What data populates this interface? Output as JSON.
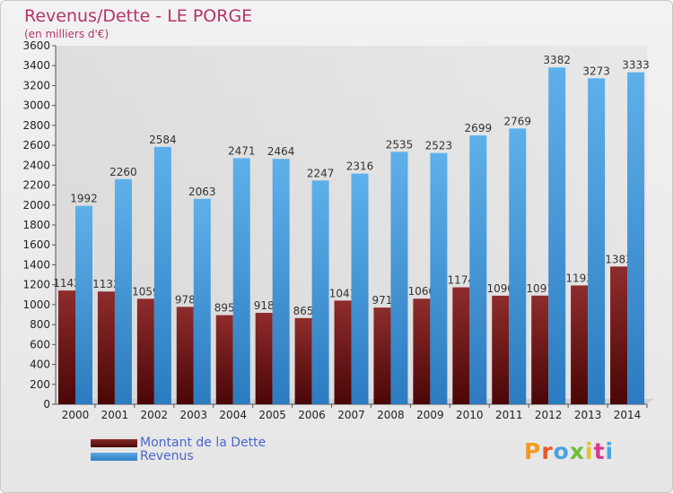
{
  "title": "Revenus/Dette - LE PORGE",
  "subtitle": "(en milliers d'€)",
  "logo": "Proxiti",
  "colors": {
    "dette": "#7a1a1a",
    "revenus": "#3f97d8",
    "title": "#b5346a",
    "legend_text": "#4a66cc"
  },
  "chart_data": {
    "type": "bar",
    "title": "Revenus/Dette - LE PORGE",
    "subtitle": "(en milliers d'€)",
    "categories": [
      "2000",
      "2001",
      "2002",
      "2003",
      "2004",
      "2005",
      "2006",
      "2007",
      "2008",
      "2009",
      "2010",
      "2011",
      "2012",
      "2013",
      "2014"
    ],
    "series": [
      {
        "name": "Montant de la Dette",
        "values": [
          1142,
          1132,
          1059,
          978,
          895,
          918,
          865,
          1041,
          971,
          1060,
          1174,
          1090,
          1091,
          1193,
          1383
        ]
      },
      {
        "name": "Revenus",
        "values": [
          1992,
          2260,
          2584,
          2063,
          2471,
          2464,
          2247,
          2316,
          2535,
          2523,
          2699,
          2769,
          3382,
          3273,
          3333
        ]
      }
    ],
    "ylim": [
      0,
      3600
    ],
    "yticks": [
      0,
      200,
      400,
      600,
      800,
      1000,
      1200,
      1400,
      1600,
      1800,
      2000,
      2200,
      2400,
      2600,
      2800,
      3000,
      3200,
      3400,
      3600
    ],
    "grid": false,
    "legend_position": "bottom-left"
  }
}
